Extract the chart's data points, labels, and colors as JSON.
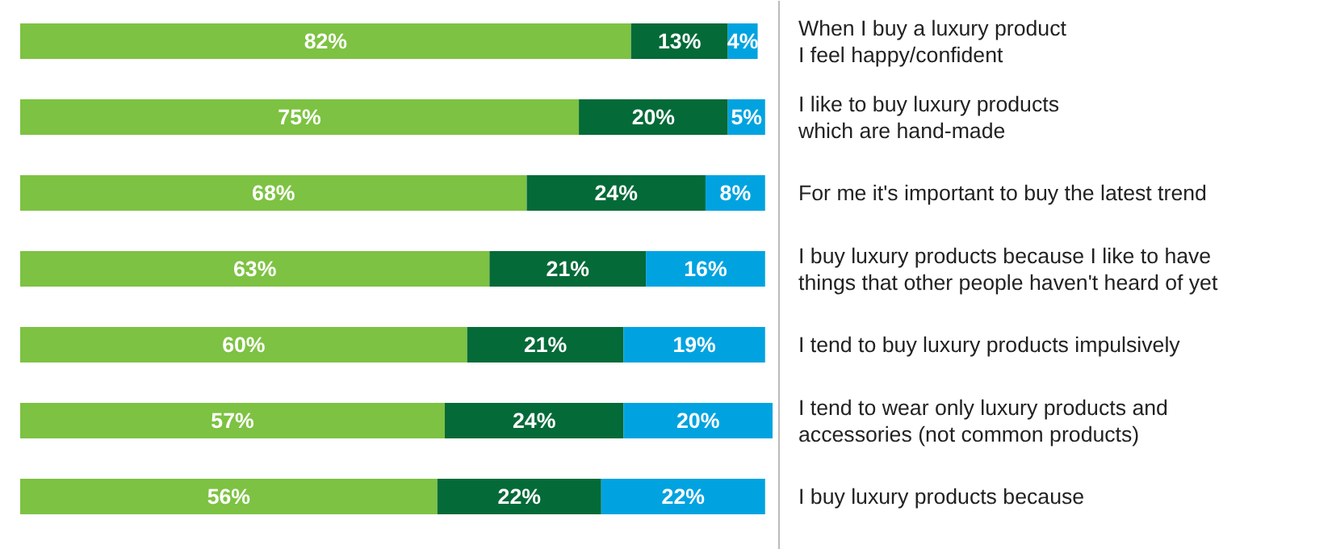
{
  "chart_data": {
    "type": "bar",
    "orientation": "horizontal",
    "stacked": true,
    "tick_labels": false,
    "categories": [
      "When I buy a luxury product\nI feel happy/confident",
      "I like to buy luxury products\nwhich are hand-made",
      "For me it's important to buy the latest trend",
      "I buy luxury products because I like to have\nthings that other people haven't heard of yet",
      "I tend to buy luxury products impulsively",
      "I tend to wear only luxury products and\naccessories (not common products)",
      "I buy luxury products because"
    ],
    "series": [
      {
        "color": "#7dc242",
        "values": [
          82,
          75,
          68,
          63,
          60,
          57,
          56
        ],
        "value_labels": [
          "82%",
          "75%",
          "68%",
          "63%",
          "60%",
          "57%",
          "56%"
        ]
      },
      {
        "color": "#046a38",
        "values": [
          13,
          20,
          24,
          21,
          21,
          24,
          22
        ],
        "value_labels": [
          "13%",
          "20%",
          "24%",
          "21%",
          "21%",
          "24%",
          "22%"
        ]
      },
      {
        "color": "#00a3e0",
        "values": [
          4,
          5,
          8,
          16,
          19,
          20,
          22
        ],
        "value_labels": [
          "4%",
          "5%",
          "8%",
          "16%",
          "19%",
          "20%",
          "22%"
        ]
      }
    ]
  }
}
